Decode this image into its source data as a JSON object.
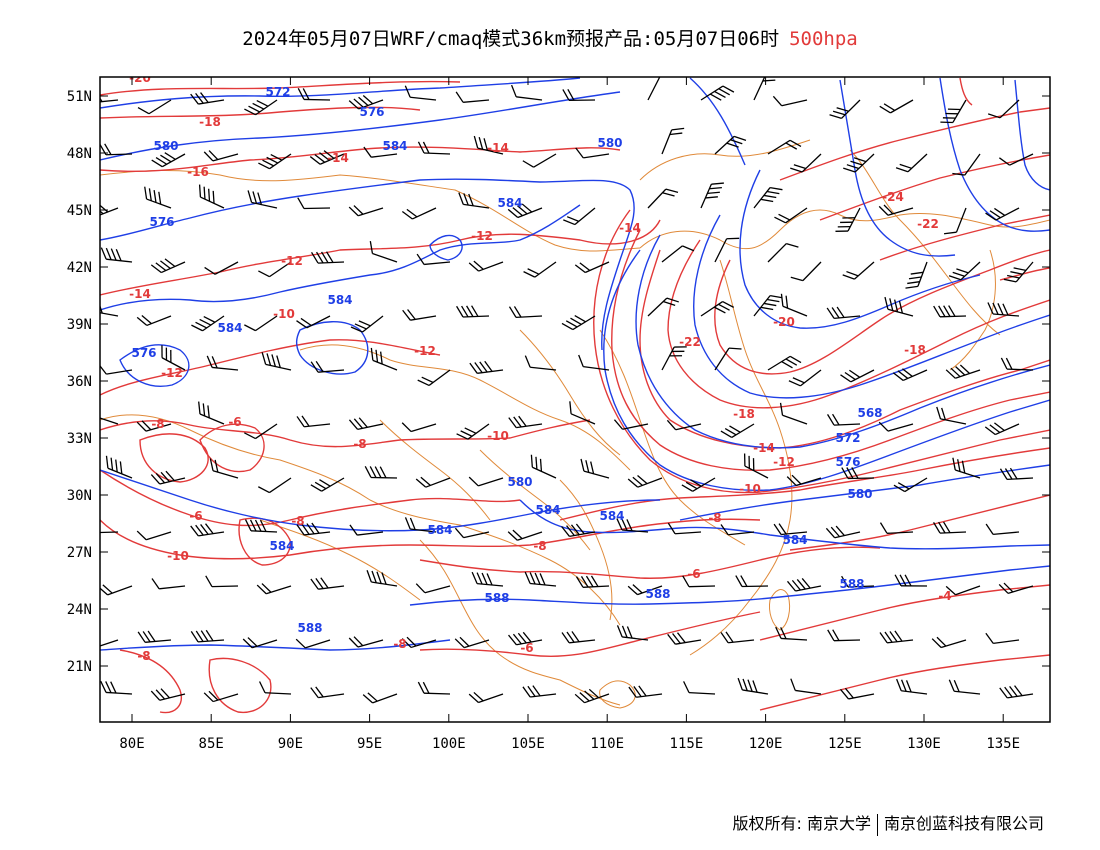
{
  "title": {
    "main": "2024年05月07日WRF/cmaq模式36km预报产品:05月07日06时",
    "level": "500hpa"
  },
  "colors": {
    "height_contour": "#1f3fe6",
    "temp_contour": "#e23a3a",
    "border": "#e08a3a",
    "wind": "#000000"
  },
  "axes": {
    "x_ticks": [
      "80E",
      "85E",
      "90E",
      "95E",
      "100E",
      "105E",
      "110E",
      "115E",
      "120E",
      "125E",
      "130E",
      "135E"
    ],
    "y_ticks": [
      "51N",
      "48N",
      "45N",
      "42N",
      "39N",
      "36N",
      "33N",
      "30N",
      "27N",
      "24N",
      "21N"
    ]
  },
  "height_labels": [
    "572",
    "576",
    "580",
    "584",
    "580",
    "576",
    "584",
    "584",
    "584",
    "576",
    "580",
    "584",
    "584",
    "584",
    "584",
    "588",
    "588",
    "588",
    "588",
    "568",
    "572",
    "576",
    "580",
    "584"
  ],
  "temp_labels": [
    "-20",
    "-18",
    "-16",
    "-14",
    "-14",
    "-14",
    "-12",
    "-12",
    "-14",
    "-10",
    "-12",
    "-12",
    "-8",
    "-6",
    "-8",
    "-10",
    "-6",
    "-8",
    "-10",
    "-8",
    "-6",
    "-8",
    "-6",
    "-4",
    "-8",
    "-22",
    "-20",
    "-18",
    "-18",
    "-14",
    "-12",
    "-10",
    "-8",
    "-24",
    "-22"
  ],
  "footer": {
    "left": "版权所有: 南京大学",
    "right": "南京创蓝科技有限公司"
  }
}
